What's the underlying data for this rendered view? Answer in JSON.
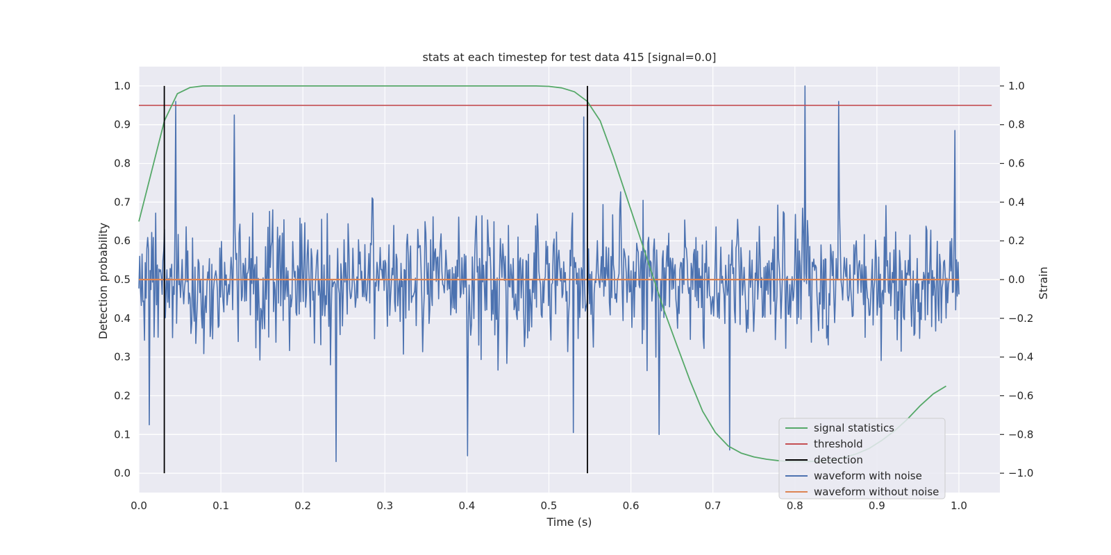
{
  "chart_data": {
    "type": "line",
    "title": "stats at each timestep for test data 415 [signal=0.0]",
    "xlabel": "Time (s)",
    "ylabel": "Detection probability",
    "y2label": "Strain",
    "xlim": [
      0.0,
      1.05
    ],
    "ylim": [
      -0.05,
      1.05
    ],
    "y2lim": [
      -1.1,
      1.1
    ],
    "xticks": [
      "0.0",
      "0.1",
      "0.2",
      "0.3",
      "0.4",
      "0.5",
      "0.6",
      "0.7",
      "0.8",
      "0.9",
      "1.0"
    ],
    "yticks": [
      "0.0",
      "0.1",
      "0.2",
      "0.3",
      "0.4",
      "0.5",
      "0.6",
      "0.7",
      "0.8",
      "0.9",
      "1.0"
    ],
    "y2ticks": [
      "−1.0",
      "−0.8",
      "−0.6",
      "−0.4",
      "−0.2",
      "0.0",
      "0.2",
      "0.4",
      "0.6",
      "0.8",
      "1.0"
    ],
    "grid": true,
    "legend_position": "lower-right",
    "colors": {
      "background": "#eaeaf2",
      "grid": "#ffffff",
      "signal_statistics": "#55a868",
      "threshold": "#c44e52",
      "detection": "#000000",
      "waveform_with_noise": "#4c72b0",
      "waveform_without_noise": "#dd8452"
    },
    "series": [
      {
        "name": "signal statistics",
        "axis": "left",
        "x": [
          0.0,
          0.0156,
          0.0312,
          0.0469,
          0.0625,
          0.0781,
          0.0938,
          0.1094,
          0.125,
          0.1406,
          0.1562,
          0.1719,
          0.1875,
          0.2031,
          0.2188,
          0.2344,
          0.25,
          0.2656,
          0.2812,
          0.2969,
          0.3125,
          0.3281,
          0.3438,
          0.3594,
          0.375,
          0.3906,
          0.4062,
          0.4219,
          0.4375,
          0.4531,
          0.4688,
          0.4844,
          0.5,
          0.5156,
          0.5312,
          0.5469,
          0.5625,
          0.5781,
          0.5938,
          0.6094,
          0.625,
          0.6406,
          0.6562,
          0.6719,
          0.6875,
          0.7031,
          0.7188,
          0.7344,
          0.75,
          0.7656,
          0.7812,
          0.7969,
          0.8125,
          0.8281,
          0.8438,
          0.8594,
          0.875,
          0.8906,
          0.9062,
          0.9219,
          0.9375,
          0.9531,
          0.9688,
          0.9844
        ],
        "values": [
          0.65,
          0.78,
          0.91,
          0.98,
          0.996,
          1.0,
          1.0,
          1.0,
          1.0,
          1.0,
          1.0,
          1.0,
          1.0,
          1.0,
          1.0,
          1.0,
          1.0,
          1.0,
          1.0,
          1.0,
          1.0,
          1.0,
          1.0,
          1.0,
          1.0,
          1.0,
          1.0,
          1.0,
          1.0,
          1.0,
          1.0,
          1.0,
          0.999,
          0.995,
          0.985,
          0.96,
          0.91,
          0.82,
          0.72,
          0.62,
          0.52,
          0.42,
          0.33,
          0.24,
          0.16,
          0.105,
          0.07,
          0.052,
          0.042,
          0.036,
          0.032,
          0.03,
          0.03,
          0.031,
          0.034,
          0.04,
          0.05,
          0.064,
          0.085,
          0.11,
          0.14,
          0.175,
          0.205,
          0.225
        ]
      },
      {
        "name": "threshold",
        "axis": "left",
        "x": [
          0.0,
          1.04
        ],
        "values": [
          0.95,
          0.95
        ]
      },
      {
        "name": "detection",
        "axis": "left",
        "vlines": [
          0.031,
          0.547
        ],
        "range": [
          0.0,
          1.0
        ]
      },
      {
        "name": "waveform with noise",
        "axis": "right",
        "x_range": [
          0.0,
          1.0
        ],
        "count": 1024,
        "amplitude": 0.27,
        "peak_points": [
          {
            "x": 0.013,
            "y": -0.75
          },
          {
            "x": 0.045,
            "y": 0.92
          },
          {
            "x": 0.116,
            "y": 0.85
          },
          {
            "x": 0.24,
            "y": -0.94
          },
          {
            "x": 0.401,
            "y": -0.91
          },
          {
            "x": 0.53,
            "y": -0.79
          },
          {
            "x": 0.543,
            "y": 0.84
          },
          {
            "x": 0.634,
            "y": -0.8
          },
          {
            "x": 0.72,
            "y": -0.88
          },
          {
            "x": 0.812,
            "y": 1.0
          },
          {
            "x": 0.853,
            "y": 0.92
          },
          {
            "x": 0.995,
            "y": 0.77
          }
        ]
      },
      {
        "name": "waveform without noise",
        "axis": "right",
        "x": [
          0.0,
          1.0
        ],
        "values": [
          0.0,
          0.0
        ]
      }
    ]
  }
}
